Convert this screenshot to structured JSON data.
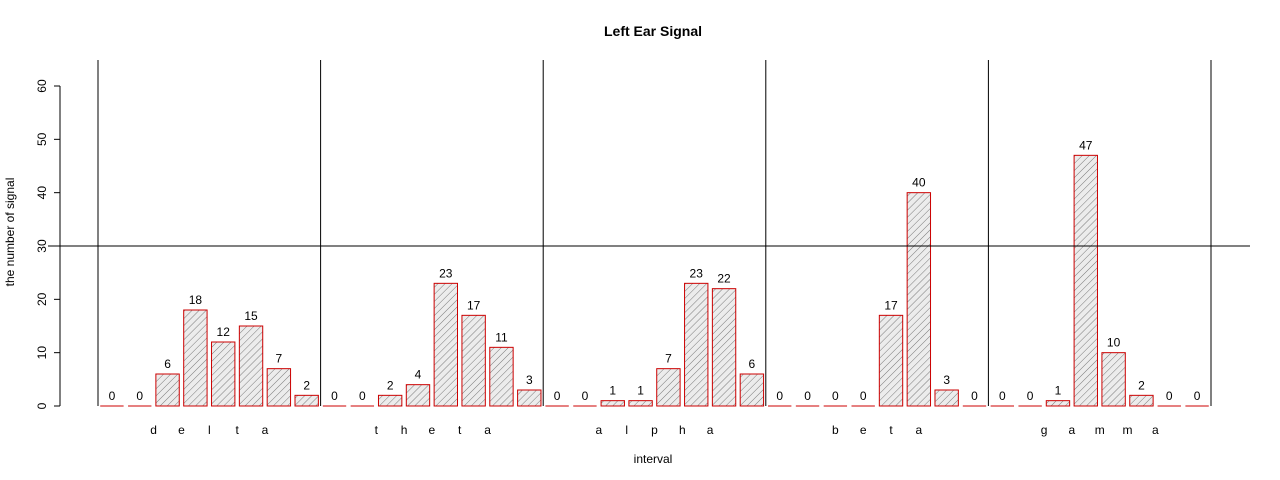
{
  "chart_data": {
    "type": "bar",
    "title": "Left Ear Signal",
    "xlabel": "interval",
    "ylabel": "the number of signal",
    "ylim": [
      0,
      60
    ],
    "yticks": [
      0,
      10,
      20,
      30,
      40,
      50,
      60
    ],
    "reference_line_y": 30,
    "bar_fill": "#cccccc",
    "bar_border": "#cc0000",
    "groups": [
      {
        "name": "delta",
        "letters": [
          "d",
          "e",
          "l",
          "t",
          "a"
        ],
        "values": [
          0,
          0,
          6,
          18,
          12,
          15,
          7,
          2
        ]
      },
      {
        "name": "theta",
        "letters": [
          "t",
          "h",
          "e",
          "t",
          "a"
        ],
        "values": [
          0,
          0,
          2,
          4,
          23,
          17,
          11,
          3
        ]
      },
      {
        "name": "alpha",
        "letters": [
          "a",
          "l",
          "p",
          "h",
          "a"
        ],
        "values": [
          0,
          0,
          1,
          1,
          7,
          23,
          22,
          6
        ]
      },
      {
        "name": "beta",
        "letters": [
          "b",
          "e",
          "t",
          "a"
        ],
        "values": [
          0,
          0,
          0,
          0,
          17,
          40,
          3,
          0
        ]
      },
      {
        "name": "gamma",
        "letters": [
          "g",
          "a",
          "m",
          "m",
          "a"
        ],
        "values": [
          0,
          0,
          1,
          47,
          10,
          2,
          0,
          0
        ]
      }
    ]
  }
}
